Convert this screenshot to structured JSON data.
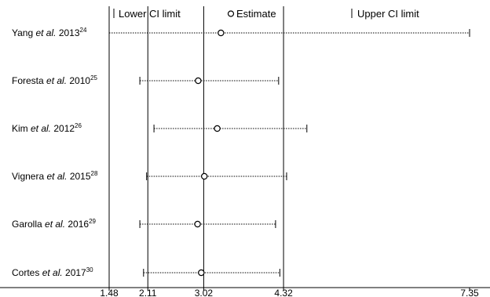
{
  "chart_data": {
    "type": "forest",
    "legend": {
      "lower": "Lower CI limit",
      "estimate": "Estimate",
      "upper": "Upper CI limit"
    },
    "xlim": [
      1.48,
      7.35
    ],
    "ticks": [
      {
        "value": 1.48,
        "label": "1.48"
      },
      {
        "value": 2.11,
        "label": "2.11"
      },
      {
        "value": 3.02,
        "label": "3.02"
      },
      {
        "value": 4.32,
        "label": "4.32"
      },
      {
        "value": 7.35,
        "label": "7.35"
      }
    ],
    "reference_lines": [
      2.11,
      3.02,
      4.32
    ],
    "studies": [
      {
        "author": "Yang",
        "etal": "et al.",
        "year": "2013",
        "ref": "24",
        "lower": 1.48,
        "estimate": 3.3,
        "upper": 7.35
      },
      {
        "author": "Foresta",
        "etal": "et al.",
        "year": "2010",
        "ref": "25",
        "lower": 1.98,
        "estimate": 2.93,
        "upper": 4.24
      },
      {
        "author": "Kim",
        "etal": "et al.",
        "year": "2012",
        "ref": "26",
        "lower": 2.21,
        "estimate": 3.24,
        "upper": 4.7
      },
      {
        "author": "Vignera",
        "etal": "et al.",
        "year": "2015",
        "ref": "28",
        "lower": 2.09,
        "estimate": 3.03,
        "upper": 4.37
      },
      {
        "author": "Garolla",
        "etal": "et al.",
        "year": "2016",
        "ref": "29",
        "lower": 1.98,
        "estimate": 2.92,
        "upper": 4.19
      },
      {
        "author": "Cortes",
        "etal": "et al.",
        "year": "2017",
        "ref": "30",
        "lower": 2.04,
        "estimate": 2.98,
        "upper": 4.26
      }
    ]
  }
}
